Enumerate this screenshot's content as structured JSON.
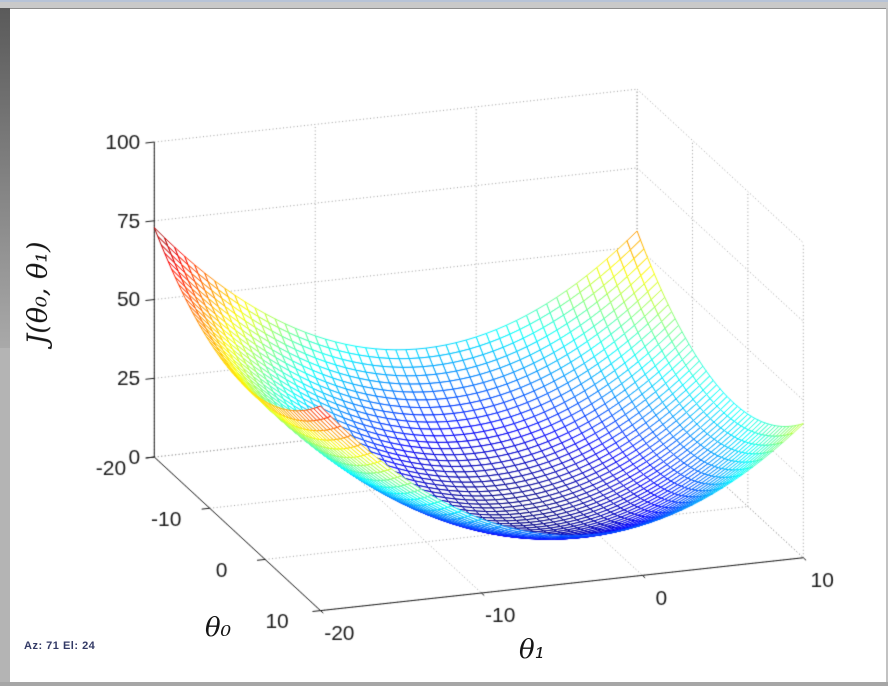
{
  "window": {
    "frame_color": "#b4b4b4",
    "figure_color": "#ffffff"
  },
  "status": {
    "text": "Az:  71 El:  24",
    "azimuth_label": "Az:",
    "azimuth_value": "71",
    "elevation_label": "El:",
    "elevation_value": "24"
  },
  "colors": {
    "grid": "#9b9b9b",
    "axis": "#1a1a1a",
    "tick_label": "#1c1c1c",
    "mesh_face": "#ffffff",
    "colormap": "jet"
  },
  "chart_data": {
    "type": "surface",
    "title": "",
    "xlabel": "θ₁",
    "ylabel": "θ₀",
    "zlabel": "J(θ₀, θ₁)",
    "x_range": [
      -20,
      10
    ],
    "y_range": [
      -20,
      10
    ],
    "z_range": [
      0,
      100
    ],
    "x_ticks": [
      -20,
      -10,
      0,
      10
    ],
    "y_ticks": [
      -20,
      -10,
      0,
      10
    ],
    "z_ticks": [
      0,
      25,
      50,
      75,
      100
    ],
    "grid": true,
    "view": {
      "azimuth": 71,
      "elevation": 24
    },
    "colormap": "jet",
    "surface_function": {
      "description": "cost bowl J(t0,t1) = a*(t0-c0)^2 + b*(t1-c1)^2 + c*(t0-c0)*(t1-c1)",
      "a": 0.087,
      "b": 0.17,
      "c": -0.005,
      "c0": -3,
      "c1": -3,
      "mesh_divisions": 48,
      "z_color_max": 73.2,
      "corner_values": {
        "theta0_-20_theta1_-20": 73,
        "theta0_10_theta1_-20": 65,
        "theta0_-20_theta1_10": 55,
        "theta0_10_theta1_10": 43,
        "minimum": 0
      }
    }
  }
}
